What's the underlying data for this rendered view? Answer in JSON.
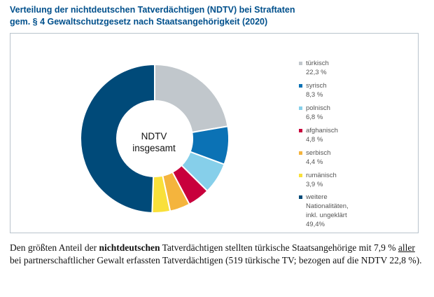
{
  "title": {
    "line1": "Verteilung der nichtdeutschen Tatverdächtigen (NDTV) bei Straftaten",
    "line2": "gem. § 4 Gewaltschutzgesetz nach Staatsangehörigkeit (2020)"
  },
  "center": {
    "line1": "NDTV",
    "line2": "insgesamt"
  },
  "chart_data": {
    "type": "pie",
    "donut": true,
    "categories": [
      "türkisch",
      "syrisch",
      "polnisch",
      "afghanisch",
      "serbisch",
      "rumänisch",
      "weitere Nationalitäten, inkl. ungeklärt"
    ],
    "values": [
      22.3,
      8.3,
      6.8,
      4.8,
      4.4,
      3.9,
      49.4
    ],
    "unit": "%",
    "colors": [
      "#c1c7cc",
      "#0b72b5",
      "#86cfea",
      "#c8003c",
      "#f4b43d",
      "#f9e03a",
      "#004a79"
    ],
    "legend_labels": [
      "türkisch 22,3 %",
      "syrisch 8,3 %",
      "polnisch 6,8 %",
      "afghanisch 4,8 %",
      "serbisch 4,4 %",
      "rumänisch 3,9 %",
      "weitere Nationalitäten,\ninkl. ungeklärt 49,4%"
    ],
    "legend_position": "right"
  },
  "paragraph": {
    "p1": "Den größten Anteil der ",
    "bold": "nichtdeutschen",
    "p2": " Tatverdächtigen stellten türkische Staatsangehörige mit 7,9 % ",
    "underline": "aller",
    "p3": " bei partnerschaftlicher Gewalt erfassten Tatverdächtigen (519 türkische TV; bezogen auf die NDTV 22,8 %)."
  }
}
